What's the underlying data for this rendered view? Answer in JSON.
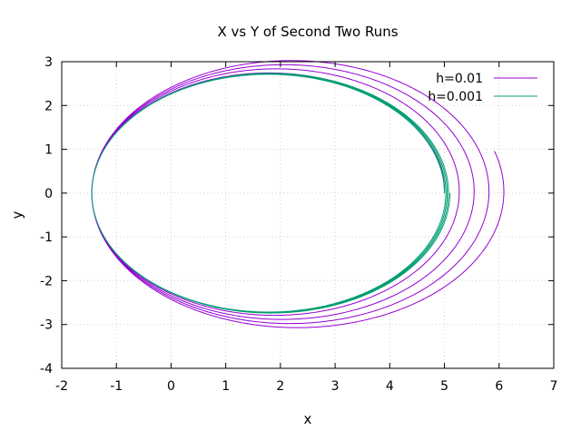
{
  "chart_data": {
    "type": "line",
    "title": "X vs Y of Second Two Runs",
    "xlabel": "x",
    "ylabel": "y",
    "xlim": [
      -2,
      7
    ],
    "ylim": [
      -4,
      3
    ],
    "xticks": [
      -2,
      -1,
      0,
      1,
      2,
      3,
      4,
      5,
      6,
      7
    ],
    "yticks": [
      -4,
      -3,
      -2,
      -1,
      0,
      1,
      2,
      3
    ],
    "grid": true,
    "legend_position": "top-right",
    "series": [
      {
        "name": "h=0.01",
        "color": "#9400d3",
        "orbit": {
          "periapsis": -1.45,
          "apoapsis_start": 5.0,
          "apoapsis_end": 6.1,
          "semi_minor_start": 2.72,
          "semi_minor_end": 3.1,
          "revolutions": 4.05
        }
      },
      {
        "name": "h=0.001",
        "color": "#009e73",
        "orbit": {
          "periapsis": -1.45,
          "apoapsis_start": 5.0,
          "apoapsis_end": 5.1,
          "semi_minor_start": 2.71,
          "semi_minor_end": 2.74,
          "revolutions": 4.0
        }
      }
    ]
  }
}
